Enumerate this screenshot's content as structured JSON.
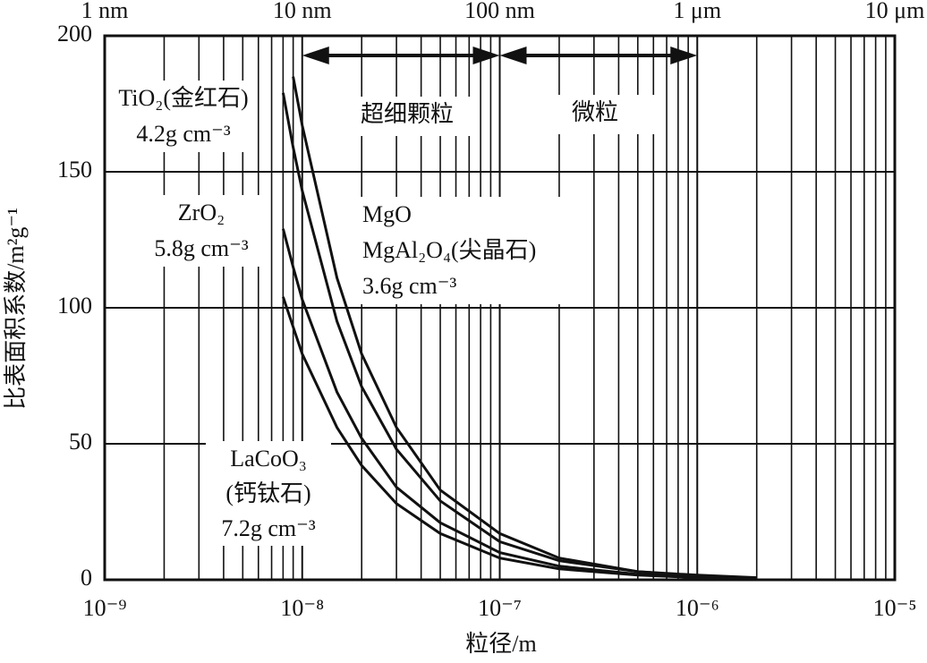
{
  "chart_data": {
    "type": "line",
    "xlabel": "粒径/m",
    "ylabel": "比表面积系数/m²g⁻¹",
    "xscale": "log",
    "grid": true,
    "x": [
      8e-09,
      9e-09,
      1e-08,
      1.5e-08,
      2e-08,
      3e-08,
      5e-08,
      1e-07,
      2e-07,
      5e-07,
      1e-06,
      2e-06
    ],
    "series": [
      {
        "name": "TiO₂(金红石)",
        "color": "#111111",
        "values": [
          179,
          159,
          143,
          95,
          71,
          48,
          29,
          14,
          7,
          3,
          1.4,
          0.7
        ]
      },
      {
        "name": "ZrO₂",
        "color": "#111111",
        "values": [
          129,
          115,
          103,
          69,
          52,
          34,
          21,
          10,
          5,
          2,
          1,
          0.5
        ]
      },
      {
        "name": "LaCoO₃",
        "color": "#111111",
        "values": [
          104,
          93,
          83,
          56,
          42,
          28,
          17,
          8,
          4,
          1.7,
          0.8,
          0.4
        ]
      },
      {
        "name": "MgO",
        "color": "#111111",
        "values": [
          null,
          185,
          167,
          111,
          83,
          56,
          33,
          17,
          8,
          3,
          1.7,
          0.8
        ]
      }
    ],
    "xlim": [
      1e-09,
      1e-05
    ],
    "xticks": [
      {
        "value": 1e-09,
        "label": "10⁻⁹"
      },
      {
        "value": 1e-08,
        "label": "10⁻⁸"
      },
      {
        "value": 1e-07,
        "label": "10⁻⁷"
      },
      {
        "value": 1e-06,
        "label": "10⁻⁶"
      },
      {
        "value": 1e-05,
        "label": "10⁻⁵"
      }
    ],
    "x2ticks": [
      {
        "value": 1e-09,
        "label": "1 nm"
      },
      {
        "value": 1e-08,
        "label": "10 nm"
      },
      {
        "value": 1e-07,
        "label": "100 nm"
      },
      {
        "value": 1e-06,
        "label": "1 μm"
      },
      {
        "value": 1e-05,
        "label": "10 μm"
      }
    ],
    "ylim": [
      0,
      200
    ],
    "yticks": [
      0,
      50,
      100,
      150,
      200
    ],
    "ranges": [
      {
        "text": "超细颗粒",
        "from": 1e-08,
        "to": 1e-07
      },
      {
        "text": "微粒",
        "from": 1e-07,
        "to": 1e-06
      }
    ],
    "annotations": [
      {
        "lines": [
          "TiO₂(金红石)",
          "4.2g cm⁻³"
        ]
      },
      {
        "lines": [
          "ZrO₂",
          "5.8g cm⁻³"
        ]
      },
      {
        "lines": [
          "MgO",
          "MgAl₂O₄(尖晶石)",
          "3.6g cm⁻³"
        ]
      },
      {
        "lines": [
          "LaCoO₃",
          "(钙钛石)",
          "7.2g cm⁻³"
        ]
      }
    ]
  }
}
